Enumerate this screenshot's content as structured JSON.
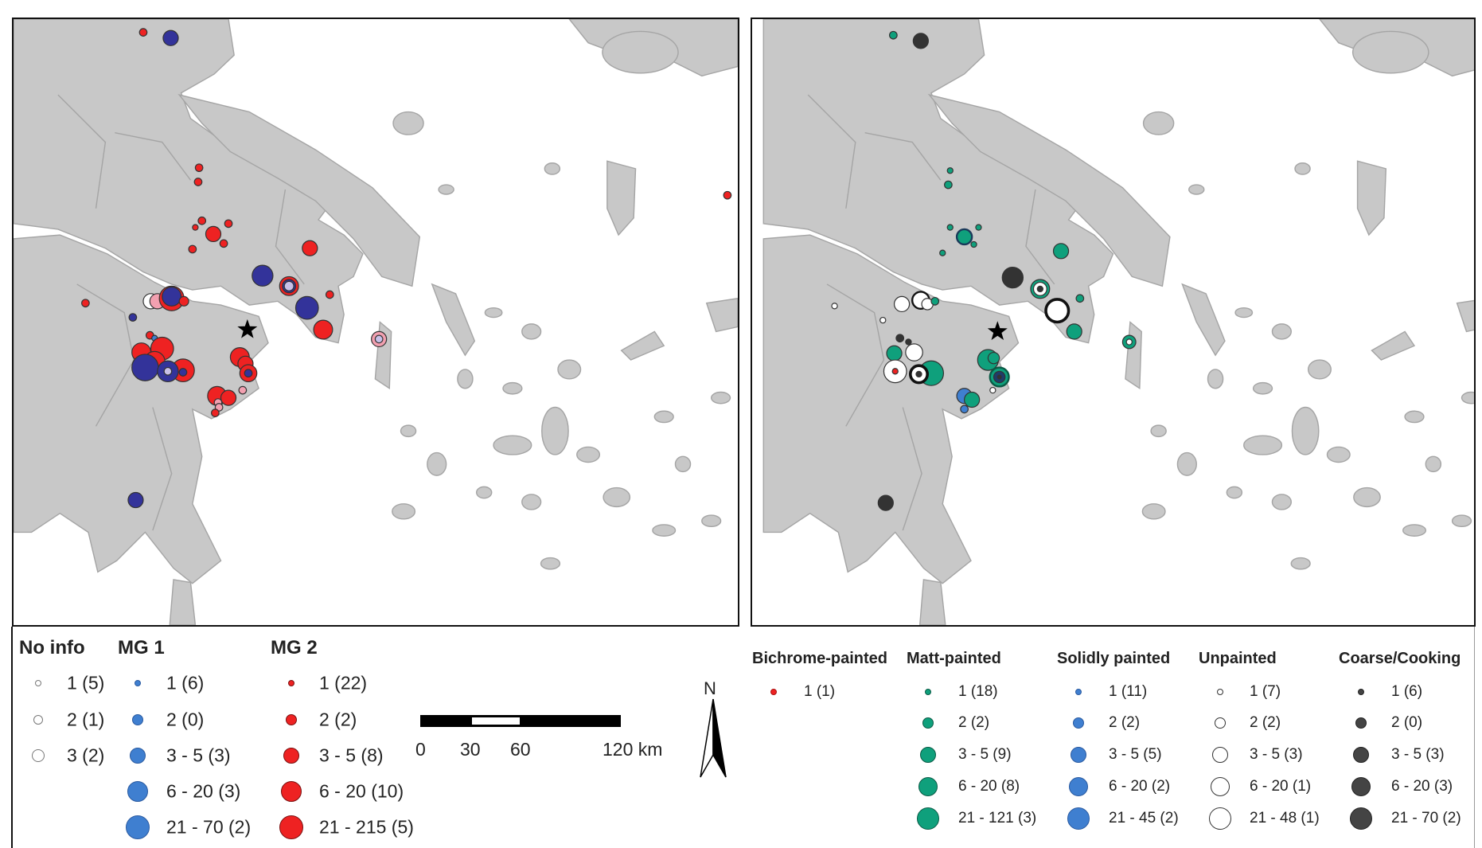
{
  "left_legend": {
    "groups": [
      {
        "title": "No info",
        "color": "#ffffff",
        "stroke": "#777777",
        "items": [
          "1 (5)",
          "2 (1)",
          "3 (2)"
        ]
      },
      {
        "title": "MG 1",
        "color": "#3f7fd0",
        "stroke": "#2a5aa0",
        "items": [
          "1 (6)",
          "2 (0)",
          "3 - 5 (3)",
          "6 - 20 (3)",
          "21 - 70 (2)"
        ]
      },
      {
        "title": "MG 2",
        "color": "#ee2222",
        "stroke": "#7a1010",
        "items": [
          "1 (22)",
          "2 (2)",
          "3 - 5 (8)",
          "6 - 20 (10)",
          "21 - 215 (5)"
        ]
      }
    ]
  },
  "right_legend": {
    "groups": [
      {
        "title": "Bichrome-painted",
        "color": "#ee2222",
        "stroke": "#aa1111",
        "items": [
          "1 (1)"
        ]
      },
      {
        "title": "Matt-painted",
        "color": "#0fa07c",
        "stroke": "#0a5a45",
        "items": [
          "1 (18)",
          "2 (2)",
          "3 - 5 (9)",
          "6 - 20 (8)",
          "21 - 121 (3)"
        ]
      },
      {
        "title": "Solidly painted",
        "color": "#3f7fd0",
        "stroke": "#2a5aa0",
        "items": [
          "1 (11)",
          "2 (2)",
          "3 - 5 (5)",
          "6 - 20 (2)",
          "21 - 45 (2)"
        ]
      },
      {
        "title": "Unpainted",
        "color": "#ffffff",
        "stroke": "#333333",
        "items": [
          "1 (7)",
          "2 (2)",
          "3 - 5 (3)",
          "6 - 20 (1)",
          "21 - 48 (1)"
        ]
      },
      {
        "title": "Coarse/Cooking",
        "color": "#444444",
        "stroke": "#222222",
        "items": [
          "1 (6)",
          "2 (0)",
          "3 - 5 (3)",
          "6 - 20 (3)",
          "21 - 70 (2)"
        ]
      }
    ]
  },
  "scale_bar": {
    "labels": [
      "0",
      "30",
      "60",
      "120 km"
    ]
  },
  "north_arrow": {
    "label": "N"
  },
  "colors": {
    "land": "#c8c8c8",
    "border": "#a5a5a5",
    "sea": "#ffffff"
  }
}
